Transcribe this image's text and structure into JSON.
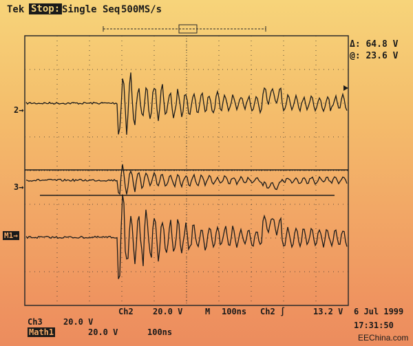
{
  "header": {
    "brand": "Tek",
    "state": "Stop:",
    "acquisition_mode": "Single Seq",
    "sample_rate": "500MS/s"
  },
  "cursor_readout": {
    "delta": "Δ: 64.8 V",
    "at": "@: 23.6 V"
  },
  "channel_markers": {
    "ch2": "2→",
    "ch3": "3→",
    "math": "M1→"
  },
  "bottom_bar": {
    "ch2_label": "Ch2",
    "ch2_scale": "20.0 V",
    "m_label": "M",
    "timebase": "100ns",
    "trigger_source": "Ch2 ∫",
    "trigger_level": "13.2 V",
    "date": "6 Jul 1999",
    "time": "17:31:50",
    "ch3_label": "Ch3",
    "ch3_scale": "20.0 V",
    "math_label": "Math1",
    "math_scale": "20.0 V",
    "math_timebase": "100ns"
  },
  "watermark": "EEChina.com",
  "colors": {
    "trace": "#1a1a1a",
    "grid": "#2a2a2a",
    "background_top": "#f7d47a",
    "background_bottom": "#ec8c5e"
  }
}
